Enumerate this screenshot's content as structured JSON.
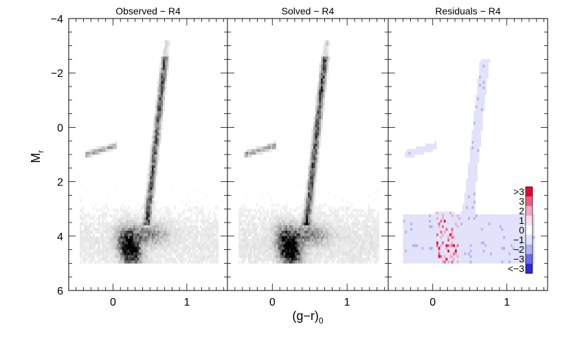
{
  "chart_data": [
    {
      "type": "heatmap",
      "title": "Observed − R4",
      "xlabel": "(g−r)",
      "xlabel_sub": "0",
      "ylabel": "M",
      "ylabel_sub": "r",
      "xlim": [
        -0.6,
        1.55
      ],
      "ylim": [
        6,
        -4
      ],
      "x_ticks": [
        0,
        1
      ],
      "x_ticklabels": [
        "0",
        "1"
      ],
      "y_ticks": [
        -4,
        -2,
        0,
        2,
        4,
        6
      ],
      "y_ticklabels": [
        "−4",
        "−2",
        "0",
        "2",
        "4",
        "6"
      ],
      "colormap": "greyscale",
      "features": [
        {
          "name": "main sequence / turnoff",
          "x_range": [
            0.0,
            0.5
          ],
          "y_range": [
            3.5,
            5.0
          ]
        },
        {
          "name": "red giant branch",
          "x_range": [
            0.45,
            0.7
          ],
          "y_range": [
            -2.5,
            3.5
          ]
        },
        {
          "name": "horizontal branch",
          "x_range": [
            -0.35,
            0.05
          ],
          "y_range": [
            0.6,
            1.1
          ]
        }
      ]
    },
    {
      "type": "heatmap",
      "title": "Solved − R4",
      "xlim": [
        -0.6,
        1.55
      ],
      "ylim": [
        6,
        -4
      ],
      "x_ticks": [
        0,
        1
      ],
      "x_ticklabels": [
        "0",
        "1"
      ],
      "colormap": "greyscale"
    },
    {
      "type": "heatmap",
      "title": "Residuals − R4",
      "xlim": [
        -0.6,
        1.55
      ],
      "ylim": [
        6,
        -4
      ],
      "x_ticks": [
        0,
        1
      ],
      "x_ticklabels": [
        "0",
        "1"
      ],
      "colormap": "diverging blue-white-red",
      "colorbar": {
        "labels": [
          ">3",
          "3",
          "2",
          "1",
          "0",
          "−1",
          "−2",
          "−3",
          "<−3"
        ],
        "colors": [
          "#e8002a",
          "#ee5c86",
          "#f4a8c0",
          "#fbe0ea",
          "#ffffff",
          "#e2e2fa",
          "#b2b2f2",
          "#6a6aea",
          "#2a2ae0"
        ]
      }
    }
  ]
}
